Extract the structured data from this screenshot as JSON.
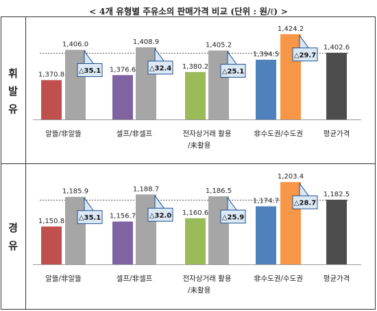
{
  "title": "< 4개 유형별 주유소의 판매가격 비교 (단위 : 원/ℓ) >",
  "chart_data": [
    {
      "type": "bar",
      "side_label": [
        "휘",
        "발",
        "유"
      ],
      "groups": [
        {
          "label": [
            "알뜰/非알뜰"
          ],
          "values": [
            1370.8,
            1406.0
          ],
          "labels": [
            "1,370.8",
            "1,406.0"
          ],
          "colors": [
            "#c0504d",
            "#a6a6a6"
          ],
          "diff": "△35.1"
        },
        {
          "label": [
            "셀프/非셀프"
          ],
          "values": [
            1376.6,
            1408.9
          ],
          "labels": [
            "1,376.6",
            "1,408.9"
          ],
          "colors": [
            "#8064a2",
            "#a6a6a6"
          ],
          "diff": "△32.4"
        },
        {
          "label": [
            "전자상거래 활용",
            "/未활용"
          ],
          "values": [
            1380.2,
            1405.2
          ],
          "labels": [
            "1,380.2",
            "1,405.2"
          ],
          "colors": [
            "#9bbb59",
            "#a6a6a6"
          ],
          "diff": "△25.1"
        },
        {
          "label": [
            "非수도권/수도권"
          ],
          "values": [
            1394.5,
            1424.2
          ],
          "labels": [
            "1,394.5",
            "1,424.2"
          ],
          "colors": [
            "#4f81bd",
            "#f79646"
          ],
          "diff": "△29.7"
        },
        {
          "label": [
            "평균가격"
          ],
          "values": [
            1402.6
          ],
          "labels": [
            "1,402.6"
          ],
          "colors": [
            "#4d4d4d"
          ],
          "diff": ""
        }
      ],
      "reference": 1402.6,
      "ylim": [
        1325,
        1440
      ]
    },
    {
      "type": "bar",
      "side_label": [
        "경",
        "유"
      ],
      "groups": [
        {
          "label": [
            "알뜰/非알뜰"
          ],
          "values": [
            1150.8,
            1185.9
          ],
          "labels": [
            "1,150.8",
            "1,185.9"
          ],
          "colors": [
            "#c0504d",
            "#a6a6a6"
          ],
          "diff": "△35.1"
        },
        {
          "label": [
            "셀프/非셀프"
          ],
          "values": [
            1156.7,
            1188.7
          ],
          "labels": [
            "1,156.7",
            "1,188.7"
          ],
          "colors": [
            "#8064a2",
            "#a6a6a6"
          ],
          "diff": "△32.0"
        },
        {
          "label": [
            "전자상거래 활용",
            "/未활용"
          ],
          "values": [
            1160.6,
            1186.5
          ],
          "labels": [
            "1,160.6",
            "1,186.5"
          ],
          "colors": [
            "#9bbb59",
            "#a6a6a6"
          ],
          "diff": "△25.9"
        },
        {
          "label": [
            "非수도권/수도권"
          ],
          "values": [
            1174.7,
            1203.4
          ],
          "labels": [
            "1,174.7",
            "1,203.4"
          ],
          "colors": [
            "#4f81bd",
            "#f79646"
          ],
          "diff": "△28.7"
        },
        {
          "label": [
            "평균가격"
          ],
          "values": [
            1182.5
          ],
          "labels": [
            "1,182.5"
          ],
          "colors": [
            "#4d4d4d"
          ],
          "diff": ""
        }
      ],
      "reference": 1182.5,
      "ylim": [
        1106,
        1219
      ]
    }
  ]
}
